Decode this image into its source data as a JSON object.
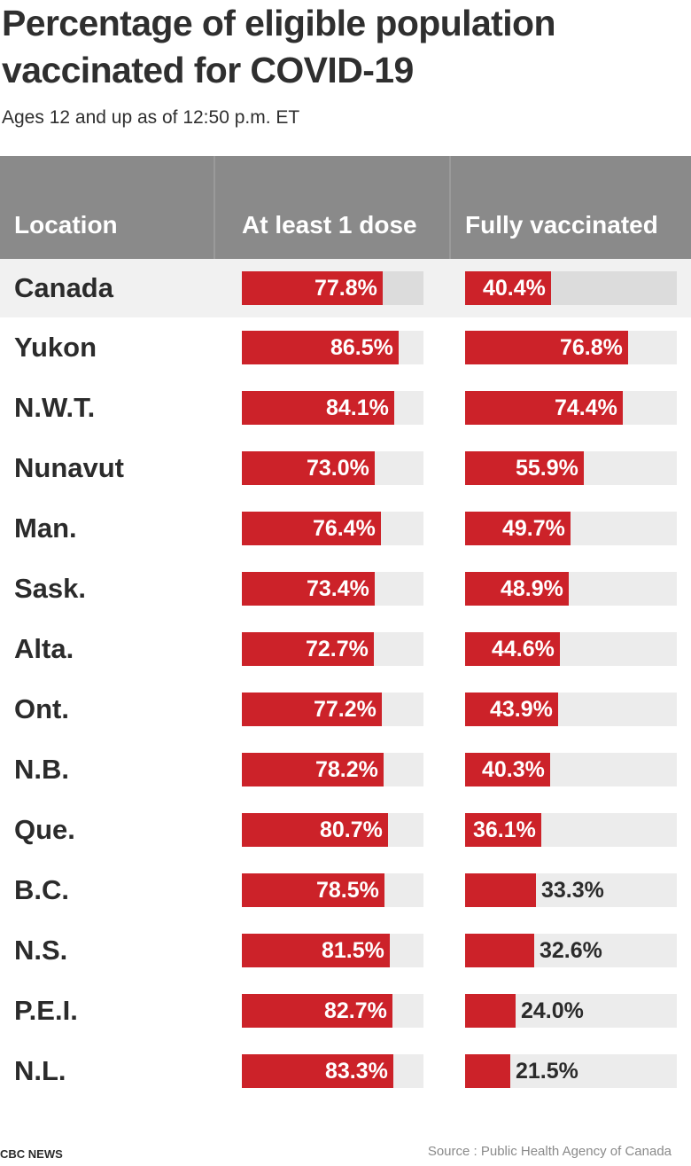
{
  "title": "Percentage of eligible population vaccinated for COVID-19",
  "subtitle": "Ages 12 and up as of 12:50 p.m. ET",
  "headers": {
    "location": "Location",
    "dose": "At least 1 dose",
    "full": "Fully vaccinated"
  },
  "footer": {
    "brand": "CBC NEWS",
    "source": "Source :  Public Health Agency of Canada"
  },
  "colors": {
    "bar": "#cc2229",
    "header_bg": "#8a8a8a",
    "track": "#ececec"
  },
  "chart_data": {
    "type": "table",
    "title": "Percentage of eligible population vaccinated for COVID-19",
    "subtitle": "Ages 12 and up as of 12:50 p.m. ET",
    "columns": [
      "Location",
      "At least 1 dose",
      "Fully vaccinated"
    ],
    "unit": "%",
    "rows": [
      {
        "location": "Canada",
        "dose": 77.8,
        "full": 40.4,
        "highlight": true
      },
      {
        "location": "Yukon",
        "dose": 86.5,
        "full": 76.8
      },
      {
        "location": "N.W.T.",
        "dose": 84.1,
        "full": 74.4
      },
      {
        "location": "Nunavut",
        "dose": 73.0,
        "full": 55.9
      },
      {
        "location": "Man.",
        "dose": 76.4,
        "full": 49.7
      },
      {
        "location": "Sask.",
        "dose": 73.4,
        "full": 48.9
      },
      {
        "location": "Alta.",
        "dose": 72.7,
        "full": 44.6
      },
      {
        "location": "Ont.",
        "dose": 77.2,
        "full": 43.9
      },
      {
        "location": "N.B.",
        "dose": 78.2,
        "full": 40.3
      },
      {
        "location": "Que.",
        "dose": 80.7,
        "full": 36.1
      },
      {
        "location": "B.C.",
        "dose": 78.5,
        "full": 33.3
      },
      {
        "location": "N.S.",
        "dose": 81.5,
        "full": 32.6
      },
      {
        "location": "P.E.I.",
        "dose": 82.7,
        "full": 24.0
      },
      {
        "location": "N.L.",
        "dose": 83.3,
        "full": 21.5
      }
    ]
  }
}
